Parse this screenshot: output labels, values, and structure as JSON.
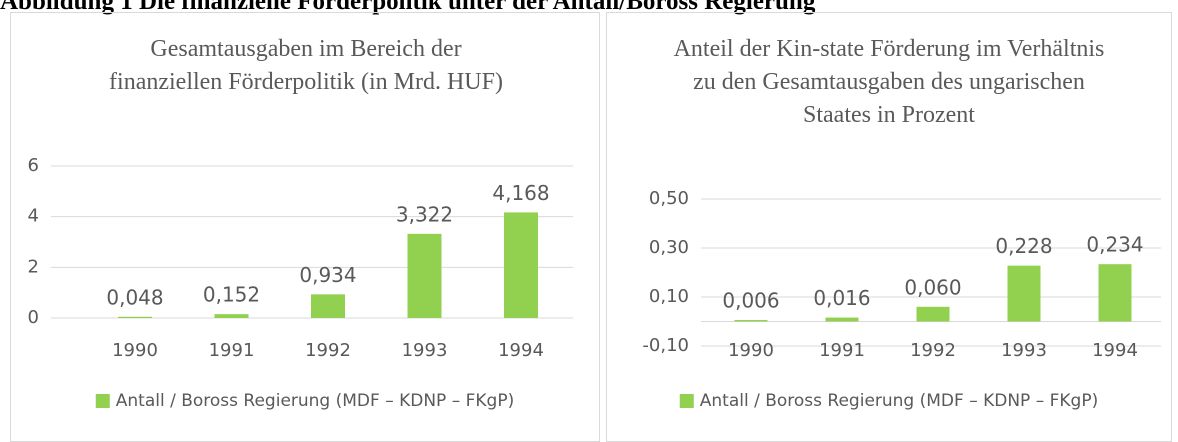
{
  "heading": "Abbildung 1 Die finanzielle Förderpolitik unter der Antall/Boross Regierung",
  "chart_data": [
    {
      "type": "bar",
      "title": "Gesamtausgaben im Bereich der finanziellen Förderpolitik (in Mrd. HUF)",
      "categories": [
        "1990",
        "1991",
        "1992",
        "1993",
        "1994"
      ],
      "series": [
        {
          "name": "Antall / Boross Regierung (MDF – KDNP – FKgP)",
          "color": "#92d050",
          "values": [
            0.048,
            0.152,
            0.934,
            3.322,
            4.168
          ],
          "value_labels": [
            "0,048",
            "0,152",
            "0,934",
            "3,322",
            "4,168"
          ]
        }
      ],
      "ylim": [
        0,
        6
      ],
      "yticks": [
        0,
        2,
        4,
        6
      ],
      "grid": true,
      "legend": "bottom"
    },
    {
      "type": "bar",
      "title": "Anteil der Kin-state Förderung im Verhältnis zu den Gesamtausgaben des ungarischen Staates in Prozent",
      "categories": [
        "1990",
        "1991",
        "1992",
        "1993",
        "1994"
      ],
      "series": [
        {
          "name": "Antall / Boross Regierung (MDF – KDNP – FKgP)",
          "color": "#92d050",
          "values": [
            0.006,
            0.016,
            0.06,
            0.228,
            0.234
          ],
          "value_labels": [
            "0,006",
            "0,016",
            "0,060",
            "0,228",
            "0,234"
          ]
        }
      ],
      "ylim": [
        -0.1,
        0.5
      ],
      "yticks": [
        {
          "value": -0.1,
          "label": "-0,10"
        },
        {
          "value": 0.1,
          "label": "0,10"
        },
        {
          "value": 0.3,
          "label": "0,30"
        },
        {
          "value": 0.5,
          "label": "0,50"
        }
      ],
      "grid": true,
      "legend": "bottom"
    }
  ]
}
